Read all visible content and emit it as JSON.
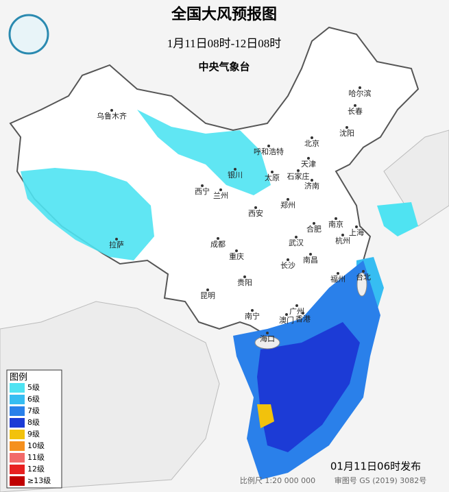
{
  "header": {
    "title": "全国大风预报图",
    "subtitle": "1月11日08时-12日08时",
    "issuer": "中央气象台"
  },
  "legend": {
    "title": "图例",
    "items": [
      {
        "label": "5级",
        "color": "#4fe3f2"
      },
      {
        "label": "6级",
        "color": "#36bdf2"
      },
      {
        "label": "7级",
        "color": "#2a80ea"
      },
      {
        "label": "8级",
        "color": "#1c3bd6"
      },
      {
        "label": "9级",
        "color": "#f2c20c"
      },
      {
        "label": "10级",
        "color": "#f5901e"
      },
      {
        "label": "11级",
        "color": "#f26a6a"
      },
      {
        "label": "12级",
        "color": "#e82020"
      },
      {
        "label": "≥13级",
        "color": "#c00000"
      }
    ]
  },
  "cities": [
    "乌鲁木齐",
    "哈尔滨",
    "长春",
    "沈阳",
    "呼和浩特",
    "北京",
    "天津",
    "银川",
    "太原",
    "石家庄",
    "济南",
    "西宁",
    "兰州",
    "郑州",
    "西安",
    "合肥",
    "南京",
    "上海",
    "成都",
    "武汉",
    "杭州",
    "拉萨",
    "重庆",
    "长沙",
    "南昌",
    "贵阳",
    "福州",
    "台北",
    "昆明",
    "广州",
    "南宁",
    "澳门",
    "香港",
    "海口"
  ],
  "footer": {
    "issue_time": "01月11日06时发布",
    "scale": "比例尺 1:20 000 000",
    "approval": "审图号 GS (2019) 3082号"
  }
}
